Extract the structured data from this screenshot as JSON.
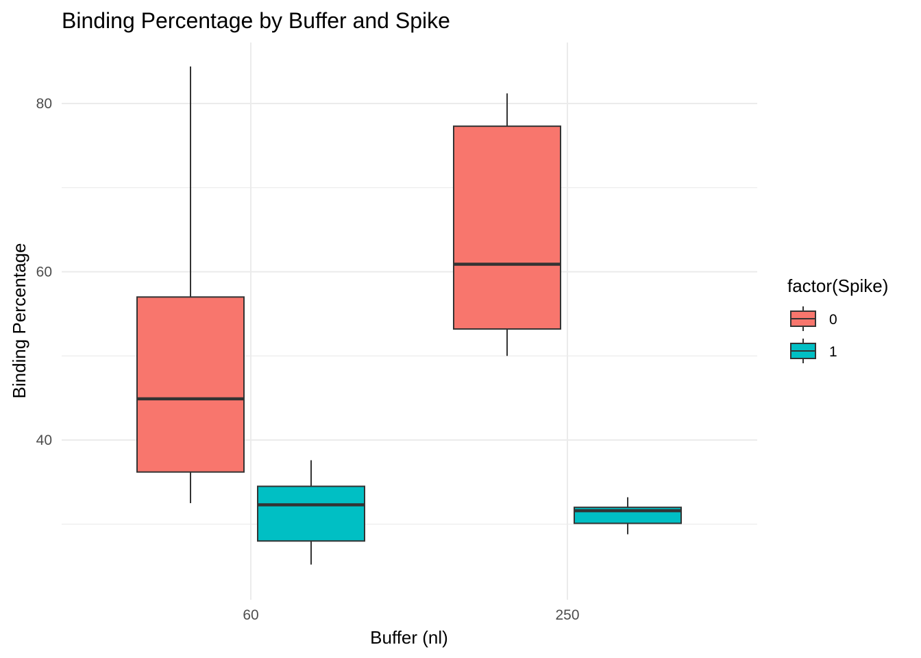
{
  "chart_data": {
    "type": "boxplot",
    "title": "Binding Percentage by Buffer and Spike",
    "xlabel": "Buffer (nl)",
    "ylabel": "Binding Percentage",
    "categories": [
      "60",
      "250"
    ],
    "ylim": [
      24,
      86
    ],
    "yticks": [
      40,
      60,
      80
    ],
    "grid": true,
    "legend": {
      "title": "factor(Spike)",
      "position": "right",
      "entries": [
        "0",
        "1"
      ]
    },
    "series": [
      {
        "name": "0",
        "color": "#F8766D",
        "boxes": [
          {
            "category": "60",
            "min": 32.5,
            "q1": 36.2,
            "median": 44.9,
            "q3": 57.0,
            "max": 84.4
          },
          {
            "category": "250",
            "min": 50.0,
            "q1": 53.2,
            "median": 60.9,
            "q3": 77.3,
            "max": 81.2
          }
        ]
      },
      {
        "name": "1",
        "color": "#00BFC4",
        "boxes": [
          {
            "category": "60",
            "min": 25.2,
            "q1": 28.0,
            "median": 32.3,
            "q3": 34.5,
            "max": 37.6
          },
          {
            "category": "250",
            "min": 28.8,
            "q1": 30.1,
            "median": 31.6,
            "q3": 32.0,
            "max": 33.2
          }
        ]
      }
    ]
  }
}
